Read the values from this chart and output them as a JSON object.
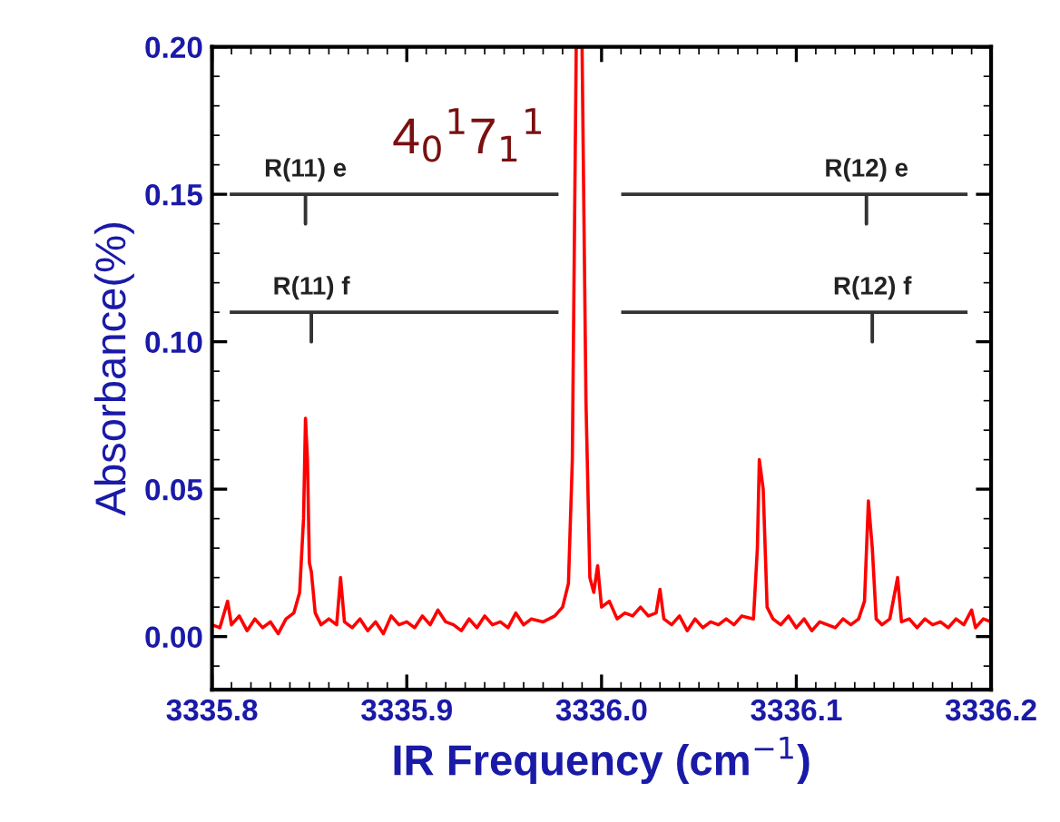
{
  "chart_data": {
    "type": "line",
    "xlabel": "IR Frequency (cm$^{−1}$)",
    "ylabel": "Absorbance(%)",
    "xlim": [
      3335.8,
      3336.2
    ],
    "xticks": [
      {
        "value": 3335.8,
        "label": "3335.8"
      },
      {
        "value": 3335.9,
        "label": "3335.9"
      },
      {
        "value": 3336.0,
        "label": "3336.0"
      },
      {
        "value": 3336.1,
        "label": "3336.1"
      },
      {
        "value": 3336.2,
        "label": "3336.2"
      }
    ],
    "ylim": [
      -0.018,
      0.2
    ],
    "yticks": [
      {
        "value": 0,
        "label": "0.00"
      },
      {
        "value": 0.05,
        "label": "0.05"
      },
      {
        "value": 0.1,
        "label": "0.10"
      },
      {
        "value": 0.15,
        "label": "0.15"
      },
      {
        "value": 0.2,
        "label": "0.20"
      }
    ],
    "grid": false,
    "legend": false,
    "marker": "none",
    "line_style": "solid",
    "series": [
      {
        "color": "#ff0000",
        "x": [
          3335.8,
          3335.804,
          3335.808,
          3335.81,
          3335.814,
          3335.818,
          3335.822,
          3335.826,
          3335.83,
          3335.834,
          3335.838,
          3335.842,
          3335.845,
          3335.847,
          3335.848,
          3335.849,
          3335.85,
          3335.851,
          3335.853,
          3335.856,
          3335.86,
          3335.864,
          3335.866,
          3335.868,
          3335.872,
          3335.876,
          3335.88,
          3335.884,
          3335.888,
          3335.892,
          3335.896,
          3335.9,
          3335.904,
          3335.908,
          3335.912,
          3335.916,
          3335.92,
          3335.924,
          3335.928,
          3335.932,
          3335.936,
          3335.94,
          3335.944,
          3335.948,
          3335.952,
          3335.956,
          3335.96,
          3335.964,
          3335.97,
          3335.976,
          3335.98,
          3335.983,
          3335.985,
          3335.987,
          3335.99,
          3335.992,
          3335.994,
          3335.996,
          3335.998,
          3336.0,
          3336.004,
          3336.008,
          3336.012,
          3336.016,
          3336.02,
          3336.024,
          3336.028,
          3336.03,
          3336.032,
          3336.036,
          3336.04,
          3336.044,
          3336.048,
          3336.052,
          3336.056,
          3336.06,
          3336.064,
          3336.068,
          3336.072,
          3336.078,
          3336.08,
          3336.081,
          3336.083,
          3336.085,
          3336.088,
          3336.092,
          3336.096,
          3336.1,
          3336.104,
          3336.108,
          3336.112,
          3336.116,
          3336.12,
          3336.124,
          3336.128,
          3336.132,
          3336.135,
          3336.137,
          3336.139,
          3336.141,
          3336.144,
          3336.148,
          3336.152,
          3336.154,
          3336.158,
          3336.162,
          3336.166,
          3336.17,
          3336.174,
          3336.178,
          3336.182,
          3336.186,
          3336.19,
          3336.192,
          3336.196,
          3336.2
        ],
        "values": [
          0.004,
          0.003,
          0.012,
          0.004,
          0.007,
          0.002,
          0.006,
          0.003,
          0.005,
          0.001,
          0.006,
          0.008,
          0.015,
          0.04,
          0.074,
          0.06,
          0.025,
          0.022,
          0.008,
          0.004,
          0.006,
          0.004,
          0.02,
          0.005,
          0.003,
          0.006,
          0.002,
          0.005,
          0.001,
          0.007,
          0.004,
          0.005,
          0.003,
          0.007,
          0.004,
          0.009,
          0.005,
          0.004,
          0.002,
          0.006,
          0.003,
          0.007,
          0.004,
          0.005,
          0.003,
          0.008,
          0.004,
          0.006,
          0.005,
          0.007,
          0.01,
          0.018,
          0.06,
          0.2,
          0.2,
          0.08,
          0.02,
          0.015,
          0.024,
          0.01,
          0.012,
          0.006,
          0.008,
          0.007,
          0.01,
          0.007,
          0.008,
          0.016,
          0.006,
          0.004,
          0.007,
          0.002,
          0.006,
          0.003,
          0.005,
          0.004,
          0.006,
          0.004,
          0.007,
          0.006,
          0.03,
          0.06,
          0.05,
          0.01,
          0.006,
          0.004,
          0.007,
          0.003,
          0.006,
          0.002,
          0.005,
          0.004,
          0.003,
          0.006,
          0.004,
          0.006,
          0.012,
          0.046,
          0.03,
          0.006,
          0.004,
          0.006,
          0.02,
          0.005,
          0.006,
          0.003,
          0.006,
          0.004,
          0.005,
          0.003,
          0.006,
          0.004,
          0.009,
          0.003,
          0.006,
          0.005
        ]
      },
      {
        "type": "line",
        "color": "#333333",
        "x": [
          3335.81,
          3335.848,
          3335.848,
          3335.848,
          3335.977
        ],
        "values": [
          0.15,
          0.15,
          0.14,
          0.15,
          0.15
        ]
      },
      {
        "type": "line",
        "color": "#333333",
        "x": [
          3335.81,
          3335.851,
          3335.851,
          3335.851,
          3335.977
        ],
        "values": [
          0.11,
          0.11,
          0.1,
          0.11,
          0.11
        ]
      },
      {
        "type": "line",
        "color": "#333333",
        "x": [
          3336.011,
          3336.136,
          3336.136,
          3336.136,
          3336.187
        ],
        "values": [
          0.15,
          0.15,
          0.14,
          0.15,
          0.15
        ]
      },
      {
        "type": "line",
        "color": "#333333",
        "x": [
          3336.011,
          3336.139,
          3336.139,
          3336.139,
          3336.187
        ],
        "values": [
          0.11,
          0.11,
          0.1,
          0.11,
          0.11
        ]
      }
    ],
    "annotations": [
      "4$_{0}$$^{1}$7$_{1}$$^{1}$",
      {
        "text": "R(11) e",
        "x": 3335.848,
        "y": 0.15
      },
      {
        "text": "R(11) f",
        "x": 3335.851,
        "y": 0.11
      },
      {
        "text": "R(12) e",
        "x": 3336.136,
        "y": 0.15
      },
      {
        "text": "R(12) f",
        "x": 3336.139,
        "y": 0.11
      }
    ]
  }
}
